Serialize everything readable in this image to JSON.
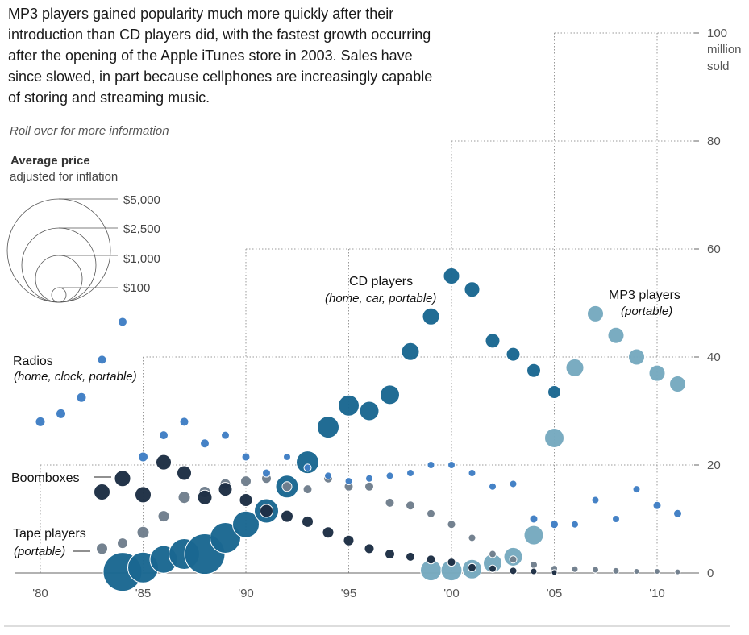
{
  "header": {
    "intro": "MP3 players gained popularity much more quickly after their introduction than CD players did, with the fastest growth occurring after the opening of the Apple iTunes store in 2003. Sales have since slowed, in part because cellphones are increasingly capable of storing and streaming music.",
    "hint": "Roll over for more information"
  },
  "legend": {
    "title": "Average price",
    "subtitle": "adjusted for inflation",
    "items": [
      {
        "label": "$5,000",
        "price": 5000
      },
      {
        "label": "$2,500",
        "price": 2500
      },
      {
        "label": "$1,000",
        "price": 1000
      },
      {
        "label": "$100",
        "price": 100
      }
    ]
  },
  "chart_data": {
    "type": "scatter",
    "title": "",
    "xlabel": "",
    "ylabel": "million sold",
    "xlim": [
      1980,
      2011
    ],
    "ylim": [
      0,
      100
    ],
    "x_ticks": [
      {
        "value": 1980,
        "label": "'80"
      },
      {
        "value": 1985,
        "label": "'85"
      },
      {
        "value": 1990,
        "label": "'90"
      },
      {
        "value": 1995,
        "label": "'95"
      },
      {
        "value": 2000,
        "label": "'00"
      },
      {
        "value": 2005,
        "label": "'05"
      },
      {
        "value": 2010,
        "label": "'10"
      }
    ],
    "y_ticks": [
      {
        "value": 0,
        "label": "0"
      },
      {
        "value": 20,
        "label": "20"
      },
      {
        "value": 40,
        "label": "40"
      },
      {
        "value": 60,
        "label": "60"
      },
      {
        "value": 80,
        "label": "80"
      },
      {
        "value": 100,
        "label": "100"
      }
    ],
    "y_unit_lines": [
      "million",
      "sold"
    ],
    "grid": "dotted",
    "series": [
      {
        "name": "Radios",
        "subtitle": "(home, clock, portable)",
        "color": "#3f7ec4",
        "points": [
          {
            "x": 1980,
            "y": 28,
            "r": 6
          },
          {
            "x": 1981,
            "y": 29.5,
            "r": 6
          },
          {
            "x": 1982,
            "y": 32.5,
            "r": 6
          },
          {
            "x": 1983,
            "y": 39.5,
            "r": 5.5
          },
          {
            "x": 1984,
            "y": 46.5,
            "r": 5.5
          },
          {
            "x": 1985,
            "y": 21.5,
            "r": 6
          },
          {
            "x": 1986,
            "y": 25.5,
            "r": 5.5
          },
          {
            "x": 1987,
            "y": 28,
            "r": 5.5
          },
          {
            "x": 1988,
            "y": 24,
            "r": 5.5
          },
          {
            "x": 1989,
            "y": 25.5,
            "r": 5
          },
          {
            "x": 1990,
            "y": 21.5,
            "r": 5
          },
          {
            "x": 1991,
            "y": 18.5,
            "r": 5
          },
          {
            "x": 1992,
            "y": 21.5,
            "r": 4.5
          },
          {
            "x": 1993,
            "y": 19.5,
            "r": 4.5
          },
          {
            "x": 1994,
            "y": 18,
            "r": 4.5
          },
          {
            "x": 1995,
            "y": 17,
            "r": 4.5
          },
          {
            "x": 1996,
            "y": 17.5,
            "r": 4.5
          },
          {
            "x": 1997,
            "y": 18,
            "r": 4.5
          },
          {
            "x": 1998,
            "y": 18.5,
            "r": 4.5
          },
          {
            "x": 1999,
            "y": 20,
            "r": 4.5
          },
          {
            "x": 2000,
            "y": 20,
            "r": 4.5
          },
          {
            "x": 2001,
            "y": 18.5,
            "r": 4.5
          },
          {
            "x": 2002,
            "y": 16,
            "r": 4.5
          },
          {
            "x": 2003,
            "y": 16.5,
            "r": 4.5
          },
          {
            "x": 2004,
            "y": 10,
            "r": 5
          },
          {
            "x": 2005,
            "y": 9,
            "r": 5
          },
          {
            "x": 2006,
            "y": 9,
            "r": 4.5
          },
          {
            "x": 2007,
            "y": 13.5,
            "r": 4.5
          },
          {
            "x": 2008,
            "y": 10,
            "r": 4.5
          },
          {
            "x": 2009,
            "y": 15.5,
            "r": 4.5
          },
          {
            "x": 2010,
            "y": 12.5,
            "r": 5
          },
          {
            "x": 2011,
            "y": 11,
            "r": 5
          }
        ]
      },
      {
        "name": "Boomboxes",
        "subtitle": "",
        "color": "#6f7e8c",
        "points": [
          {
            "x": 1983,
            "y": 4.5,
            "r": 7
          },
          {
            "x": 1984,
            "y": 5.5,
            "r": 6.5
          },
          {
            "x": 1985,
            "y": 7.5,
            "r": 7.5
          },
          {
            "x": 1986,
            "y": 10.5,
            "r": 7
          },
          {
            "x": 1987,
            "y": 14,
            "r": 7.5
          },
          {
            "x": 1988,
            "y": 15,
            "r": 7
          },
          {
            "x": 1989,
            "y": 16.5,
            "r": 6.5
          },
          {
            "x": 1990,
            "y": 17,
            "r": 6.5
          },
          {
            "x": 1991,
            "y": 17.5,
            "r": 6
          },
          {
            "x": 1992,
            "y": 16,
            "r": 6
          },
          {
            "x": 1993,
            "y": 15.5,
            "r": 5.5
          },
          {
            "x": 1994,
            "y": 17.5,
            "r": 5.5
          },
          {
            "x": 1995,
            "y": 16,
            "r": 5.5
          },
          {
            "x": 1996,
            "y": 16,
            "r": 5.5
          },
          {
            "x": 1997,
            "y": 13,
            "r": 5.5
          },
          {
            "x": 1998,
            "y": 12.5,
            "r": 5.5
          },
          {
            "x": 1999,
            "y": 11,
            "r": 5
          },
          {
            "x": 2000,
            "y": 9,
            "r": 5
          },
          {
            "x": 2001,
            "y": 6.5,
            "r": 4.5
          },
          {
            "x": 2002,
            "y": 3.5,
            "r": 4.5
          },
          {
            "x": 2003,
            "y": 2.5,
            "r": 4.5
          },
          {
            "x": 2004,
            "y": 1.5,
            "r": 4.5
          },
          {
            "x": 2005,
            "y": 0.8,
            "r": 4
          },
          {
            "x": 2006,
            "y": 0.7,
            "r": 4
          },
          {
            "x": 2007,
            "y": 0.6,
            "r": 4
          },
          {
            "x": 2008,
            "y": 0.4,
            "r": 4
          },
          {
            "x": 2009,
            "y": 0.3,
            "r": 3.5
          },
          {
            "x": 2010,
            "y": 0.3,
            "r": 3.5
          },
          {
            "x": 2011,
            "y": 0.2,
            "r": 3.5
          }
        ]
      },
      {
        "name": "Tape players",
        "subtitle": "(portable)",
        "color": "#1d2e44",
        "points": [
          {
            "x": 1983,
            "y": 15,
            "r": 10
          },
          {
            "x": 1984,
            "y": 17.5,
            "r": 10
          },
          {
            "x": 1985,
            "y": 14.5,
            "r": 10
          },
          {
            "x": 1986,
            "y": 20.5,
            "r": 9.5
          },
          {
            "x": 1987,
            "y": 18.5,
            "r": 9
          },
          {
            "x": 1988,
            "y": 14,
            "r": 9
          },
          {
            "x": 1989,
            "y": 15.5,
            "r": 8.5
          },
          {
            "x": 1990,
            "y": 13.5,
            "r": 8
          },
          {
            "x": 1991,
            "y": 11.5,
            "r": 8
          },
          {
            "x": 1992,
            "y": 10.5,
            "r": 7.5
          },
          {
            "x": 1993,
            "y": 9.5,
            "r": 7
          },
          {
            "x": 1994,
            "y": 7.5,
            "r": 7
          },
          {
            "x": 1995,
            "y": 6,
            "r": 6.5
          },
          {
            "x": 1996,
            "y": 4.5,
            "r": 6
          },
          {
            "x": 1997,
            "y": 3.5,
            "r": 6
          },
          {
            "x": 1998,
            "y": 3,
            "r": 5.5
          },
          {
            "x": 1999,
            "y": 2.5,
            "r": 5.5
          },
          {
            "x": 2000,
            "y": 2,
            "r": 5
          },
          {
            "x": 2001,
            "y": 1,
            "r": 5
          },
          {
            "x": 2002,
            "y": 0.8,
            "r": 4.5
          },
          {
            "x": 2003,
            "y": 0.4,
            "r": 4.5
          },
          {
            "x": 2004,
            "y": 0.3,
            "r": 4
          },
          {
            "x": 2005,
            "y": 0.1,
            "r": 3.5
          }
        ]
      },
      {
        "name": "CD players",
        "subtitle": "(home, car, portable)",
        "color": "#1a6791",
        "points": [
          {
            "x": 1984,
            "y": 0.2,
            "r": 24
          },
          {
            "x": 1985,
            "y": 1,
            "r": 19
          },
          {
            "x": 1986,
            "y": 2.5,
            "r": 17
          },
          {
            "x": 1987,
            "y": 3.5,
            "r": 19
          },
          {
            "x": 1988,
            "y": 3.5,
            "r": 25
          },
          {
            "x": 1989,
            "y": 6.5,
            "r": 19
          },
          {
            "x": 1990,
            "y": 9,
            "r": 16.5
          },
          {
            "x": 1991,
            "y": 11.5,
            "r": 15
          },
          {
            "x": 1992,
            "y": 16,
            "r": 14
          },
          {
            "x": 1993,
            "y": 20.5,
            "r": 14
          },
          {
            "x": 1994,
            "y": 27,
            "r": 13.5
          },
          {
            "x": 1995,
            "y": 31,
            "r": 13
          },
          {
            "x": 1996,
            "y": 30,
            "r": 12
          },
          {
            "x": 1997,
            "y": 33,
            "r": 12
          },
          {
            "x": 1998,
            "y": 41,
            "r": 11
          },
          {
            "x": 1999,
            "y": 47.5,
            "r": 10.5
          },
          {
            "x": 2000,
            "y": 55,
            "r": 10
          },
          {
            "x": 2001,
            "y": 52.5,
            "r": 9.5
          },
          {
            "x": 2002,
            "y": 43,
            "r": 9
          },
          {
            "x": 2003,
            "y": 40.5,
            "r": 8.5
          },
          {
            "x": 2004,
            "y": 37.5,
            "r": 8.5
          },
          {
            "x": 2005,
            "y": 33.5,
            "r": 8
          }
        ]
      },
      {
        "name": "MP3 players",
        "subtitle": "(portable)",
        "color": "#76a9bf",
        "points": [
          {
            "x": 1999,
            "y": 0.5,
            "r": 13
          },
          {
            "x": 2000,
            "y": 0.5,
            "r": 13
          },
          {
            "x": 2001,
            "y": 0.7,
            "r": 12
          },
          {
            "x": 2002,
            "y": 1.8,
            "r": 11.5
          },
          {
            "x": 2003,
            "y": 3,
            "r": 11.5
          },
          {
            "x": 2004,
            "y": 7,
            "r": 12
          },
          {
            "x": 2005,
            "y": 25,
            "r": 12
          },
          {
            "x": 2006,
            "y": 38,
            "r": 11
          },
          {
            "x": 2007,
            "y": 48,
            "r": 10
          },
          {
            "x": 2008,
            "y": 44,
            "r": 10
          },
          {
            "x": 2009,
            "y": 40,
            "r": 10
          },
          {
            "x": 2010,
            "y": 37,
            "r": 10
          },
          {
            "x": 2011,
            "y": 35,
            "r": 10
          }
        ]
      }
    ]
  }
}
